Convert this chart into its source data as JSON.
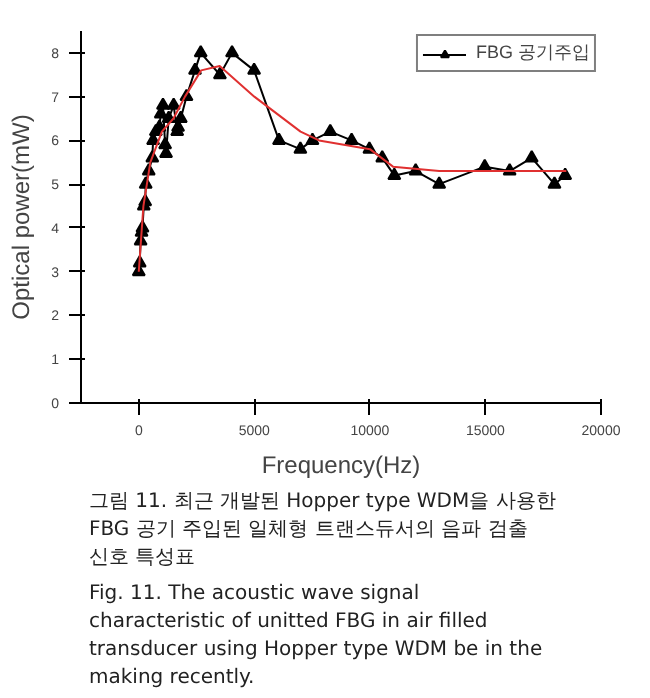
{
  "chart_data": {
    "type": "line",
    "xlabel": "Frequency(Hz)",
    "ylabel": "Optical power(mW)",
    "x": [
      0,
      40,
      80,
      120,
      160,
      216,
      277,
      300,
      431,
      585,
      620,
      739,
      893,
      950,
      1047,
      1140,
      1180,
      1294,
      1509,
      1663,
      1700,
      1817,
      2064,
      2433,
      2680,
      3511,
      4035,
      4990,
      6068,
      6992,
      7515,
      8285,
      9209,
      9979,
      10534,
      11057,
      11981,
      12998,
      14969,
      16047,
      17002,
      17987,
      18449
    ],
    "series": [
      {
        "name": "FBG 공기주입",
        "color": "#000000",
        "marker": "triangle",
        "values": [
          3.0,
          3.2,
          3.7,
          3.9,
          4.0,
          4.5,
          4.6,
          5.0,
          5.3,
          5.6,
          6.0,
          6.2,
          6.3,
          6.6,
          6.8,
          5.9,
          5.7,
          6.5,
          6.8,
          6.2,
          6.3,
          6.5,
          7.0,
          7.6,
          8.0,
          7.5,
          8.0,
          7.6,
          6.0,
          5.8,
          6.0,
          6.2,
          6.0,
          5.8,
          5.6,
          5.2,
          5.3,
          5.0,
          5.4,
          5.3,
          5.6,
          5.0,
          5.2
        ]
      },
      {
        "type": "line",
        "color": "#e03030",
        "marker": "none",
        "x": [
          0,
          200,
          500,
          1000,
          1500,
          2000,
          2700,
          3500,
          5000,
          7000,
          7800,
          10000,
          11000,
          13000,
          15000,
          18500
        ],
        "values": [
          3.0,
          4.5,
          5.5,
          6.2,
          6.5,
          7.0,
          7.6,
          7.7,
          7.0,
          6.2,
          6.0,
          5.8,
          5.4,
          5.3,
          5.3,
          5.3
        ]
      }
    ],
    "xlim": [
      -2500,
      20000
    ],
    "xticks": [
      0,
      5000,
      10000,
      15000,
      20000
    ],
    "ylim": [
      0,
      8.5
    ],
    "yticks": [
      0,
      1,
      2,
      3,
      4,
      5,
      6,
      7,
      8
    ],
    "grid": false,
    "legend": "top right",
    "annotations": [
      "그림 11. 최근 개발된 Hopper type WDM을 사용한 FBG 공기 주입된 일체형 트랜스듀서의 음파 검출 신호 특성표",
      "Fig. 11. The acoustic wave signal characteristic of unitted FBG in air filled transducer using Hopper type WDM be in the making recently."
    ]
  }
}
